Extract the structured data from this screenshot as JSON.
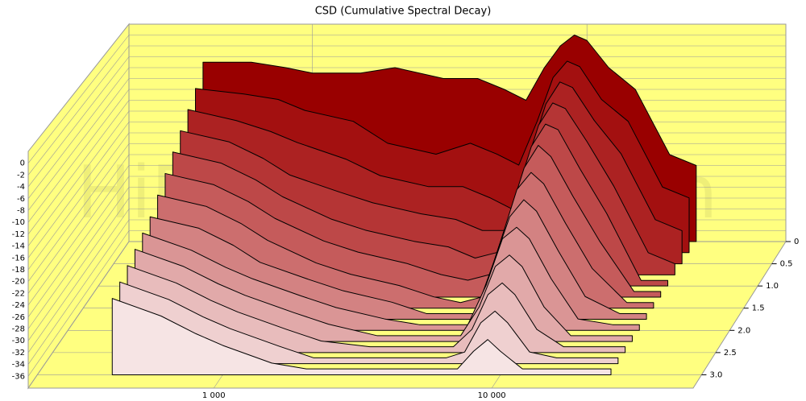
{
  "chart_data": {
    "type": "waterfall3d",
    "title": "CSD (Cumulative Spectral Decay)",
    "watermark": "HiFiCompass.com",
    "log_x": true,
    "xlim": [
      215,
      53000
    ],
    "xticks": [
      {
        "value": 1000,
        "label": "1 000"
      },
      {
        "value": 10000,
        "label": "10 000"
      }
    ],
    "ylim": [
      -38,
      2
    ],
    "yticks": [
      0,
      -2,
      -4,
      -6,
      -8,
      -10,
      -12,
      -14,
      -16,
      -18,
      -20,
      -22,
      -24,
      -26,
      -28,
      -30,
      -32,
      -34,
      -36
    ],
    "zlim": [
      0,
      3.3
    ],
    "zticks": [
      0,
      0.5,
      {
        "value": 1,
        "label": "1.0"
      },
      1.5,
      {
        "value": 2,
        "label": "2.0"
      },
      2.5,
      {
        "value": 3,
        "label": "3.0"
      }
    ],
    "grid": true,
    "x": [
      400,
      600,
      800,
      1000,
      1500,
      2000,
      3000,
      4000,
      5000,
      6000,
      7000,
      8000,
      9000,
      10000,
      12000,
      15000,
      20000,
      25000
    ],
    "series": [
      {
        "t": 0,
        "color": "#990000",
        "values": [
          -5,
          -5,
          -6,
          -7,
          -7,
          -6,
          -8,
          -8,
          -10,
          -12,
          -6,
          -2,
          0,
          -1,
          -6,
          -10,
          -22,
          -24
        ]
      },
      {
        "t": 0.25,
        "color": "#a31010",
        "values": [
          -8,
          -9,
          -10,
          -12,
          -14,
          -18,
          -20,
          -18,
          -20,
          -22,
          -14,
          -6,
          -3,
          -4,
          -10,
          -14,
          -26,
          -28
        ]
      },
      {
        "t": 0.5,
        "color": "#ac2222",
        "values": [
          -10,
          -12,
          -14,
          -16,
          -19,
          -22,
          -24,
          -24,
          -26,
          -28,
          -18,
          -9,
          -5,
          -6,
          -12,
          -18,
          -30,
          -32
        ]
      },
      {
        "t": 0.75,
        "color": "#b53535",
        "values": [
          -12,
          -14,
          -17,
          -20,
          -23,
          -25,
          -27,
          -28,
          -30,
          -30,
          -20,
          -11,
          -7,
          -8,
          -14,
          -22,
          -34,
          -36
        ]
      },
      {
        "t": 1,
        "color": "#bd4848",
        "values": [
          -14,
          -16,
          -19,
          -22,
          -26,
          -28,
          -30,
          -31,
          -33,
          -32,
          -22,
          -13,
          -9,
          -10,
          -17,
          -25,
          -37,
          -37
        ]
      },
      {
        "t": 1.25,
        "color": "#c55b5b",
        "values": [
          -16,
          -18,
          -21,
          -24,
          -28,
          -30,
          -32,
          -34,
          -35,
          -34,
          -24,
          -15,
          -11,
          -13,
          -20,
          -28,
          -37,
          -37
        ]
      },
      {
        "t": 1.5,
        "color": "#cc6e6e",
        "values": [
          -18,
          -20,
          -23,
          -26,
          -30,
          -32,
          -34,
          -36,
          -37,
          -36,
          -26,
          -17,
          -14,
          -16,
          -23,
          -31,
          -37,
          -37
        ]
      },
      {
        "t": 1.75,
        "color": "#d38282",
        "values": [
          -20,
          -22,
          -25,
          -28,
          -31,
          -33,
          -35,
          -37,
          -37,
          -37,
          -28,
          -20,
          -17,
          -19,
          -26,
          -34,
          -37,
          -37
        ]
      },
      {
        "t": 2,
        "color": "#da9595",
        "values": [
          -21,
          -24,
          -27,
          -29,
          -32,
          -34,
          -36,
          -37,
          -37,
          -37,
          -30,
          -22,
          -20,
          -22,
          -29,
          -36,
          -37,
          -37
        ]
      },
      {
        "t": 2.25,
        "color": "#e1a9a9",
        "values": [
          -22,
          -25,
          -28,
          -30,
          -33,
          -35,
          -37,
          -37,
          -37,
          -37,
          -32,
          -25,
          -23,
          -25,
          -32,
          -37,
          -37,
          -37
        ]
      },
      {
        "t": 2.5,
        "color": "#e8bcbc",
        "values": [
          -23,
          -26,
          -29,
          -31,
          -34,
          -36,
          -37,
          -37,
          -37,
          -37,
          -34,
          -28,
          -26,
          -28,
          -34,
          -37,
          -37,
          -37
        ]
      },
      {
        "t": 2.75,
        "color": "#efd0d0",
        "values": [
          -24,
          -27,
          -30,
          -32,
          -35,
          -37,
          -37,
          -37,
          -37,
          -37,
          -36,
          -31,
          -29,
          -31,
          -36,
          -37,
          -37,
          -37
        ]
      },
      {
        "t": 3,
        "color": "#f6e4e4",
        "values": [
          -25,
          -28,
          -31,
          -33,
          -36,
          -37,
          -37,
          -37,
          -37,
          -37,
          -37,
          -34,
          -32,
          -34,
          -37,
          -37,
          -37,
          -37
        ]
      }
    ]
  }
}
